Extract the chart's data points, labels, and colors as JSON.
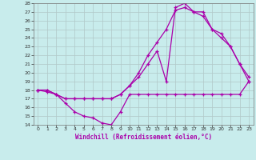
{
  "title": "",
  "xlabel": "Windchill (Refroidissement éolien,°C)",
  "ylabel": "",
  "xlim": [
    -0.5,
    23.5
  ],
  "ylim": [
    14,
    28
  ],
  "yticks": [
    14,
    15,
    16,
    17,
    18,
    19,
    20,
    21,
    22,
    23,
    24,
    25,
    26,
    27,
    28
  ],
  "xticks": [
    0,
    1,
    2,
    3,
    4,
    5,
    6,
    7,
    8,
    9,
    10,
    11,
    12,
    13,
    14,
    15,
    16,
    17,
    18,
    19,
    20,
    21,
    22,
    23
  ],
  "bg_color": "#c8ecec",
  "line_color": "#aa00aa",
  "grid_color": "#b0c8c8",
  "line1_x": [
    0,
    1,
    2,
    3,
    4,
    5,
    6,
    7,
    8,
    9,
    10,
    11,
    12,
    13,
    14,
    15,
    16,
    17,
    18,
    19,
    20,
    21,
    22,
    23
  ],
  "line1_y": [
    18.0,
    17.8,
    17.5,
    16.5,
    15.5,
    15.0,
    14.8,
    14.2,
    14.0,
    15.5,
    17.5,
    17.5,
    17.5,
    17.5,
    17.5,
    17.5,
    17.5,
    17.5,
    17.5,
    17.5,
    17.5,
    17.5,
    17.5,
    19.0
  ],
  "line2_x": [
    0,
    1,
    2,
    3,
    4,
    5,
    6,
    7,
    8,
    9,
    10,
    11,
    12,
    13,
    14,
    15,
    16,
    17,
    18,
    19,
    20,
    21,
    22,
    23
  ],
  "line2_y": [
    18.0,
    18.0,
    17.5,
    17.0,
    17.0,
    17.0,
    17.0,
    17.0,
    17.0,
    17.5,
    18.5,
    20.0,
    22.0,
    23.5,
    25.0,
    27.2,
    27.5,
    27.0,
    26.5,
    25.0,
    24.5,
    23.0,
    21.0,
    19.5
  ],
  "line3_x": [
    0,
    1,
    2,
    3,
    4,
    5,
    6,
    7,
    8,
    9,
    10,
    11,
    12,
    13,
    14,
    15,
    16,
    17,
    18,
    19,
    20,
    21,
    22,
    23
  ],
  "line3_y": [
    18.0,
    18.0,
    17.5,
    17.0,
    17.0,
    17.0,
    17.0,
    17.0,
    17.0,
    17.5,
    18.5,
    19.5,
    21.0,
    22.5,
    19.0,
    27.5,
    28.0,
    27.0,
    27.0,
    25.0,
    24.0,
    23.0,
    21.0,
    19.0
  ]
}
